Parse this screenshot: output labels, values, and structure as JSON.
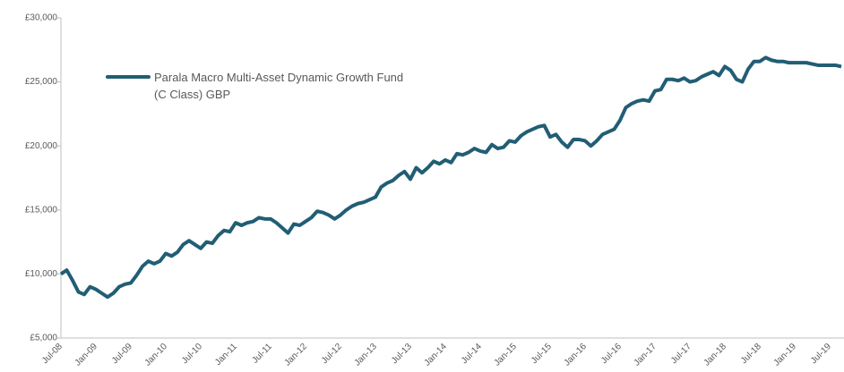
{
  "chart_data": {
    "type": "line",
    "categories": [
      "Jul-08",
      null,
      null,
      null,
      null,
      null,
      "Jan-09",
      null,
      null,
      null,
      null,
      null,
      "Jul-09",
      null,
      null,
      null,
      null,
      null,
      "Jan-10",
      null,
      null,
      null,
      null,
      null,
      "Jul-10",
      null,
      null,
      null,
      null,
      null,
      "Jan-11",
      null,
      null,
      null,
      null,
      null,
      "Jul-11",
      null,
      null,
      null,
      null,
      null,
      "Jan-12",
      null,
      null,
      null,
      null,
      null,
      "Jul-12",
      null,
      null,
      null,
      null,
      null,
      "Jan-13",
      null,
      null,
      null,
      null,
      null,
      "Jul-13",
      null,
      null,
      null,
      null,
      null,
      "Jan-14",
      null,
      null,
      null,
      null,
      null,
      "Jul-14",
      null,
      null,
      null,
      null,
      null,
      "Jan-15",
      null,
      null,
      null,
      null,
      null,
      "Jul-15",
      null,
      null,
      null,
      null,
      null,
      "Jan-16",
      null,
      null,
      null,
      null,
      null,
      "Jul-16",
      null,
      null,
      null,
      null,
      null,
      "Jan-17",
      null,
      null,
      null,
      null,
      null,
      "Jul-17",
      null,
      null,
      null,
      null,
      null,
      "Jan-18",
      null,
      null,
      null,
      null,
      null,
      "Jul-18",
      null,
      null,
      null,
      null,
      null,
      "Jan-19",
      null,
      null,
      null,
      null,
      null,
      "Jul-19",
      null,
      null
    ],
    "series": [
      {
        "name": "Parala Macro Multi-Asset Dynamic Growth Fund (C Class) GBP",
        "color": "#215e75",
        "values": [
          10000,
          10300,
          9500,
          8600,
          8400,
          9000,
          8800,
          8500,
          8200,
          8500,
          9000,
          9200,
          9300,
          9900,
          10600,
          11000,
          10800,
          11000,
          11600,
          11400,
          11700,
          12300,
          12600,
          12300,
          12000,
          12500,
          12400,
          13000,
          13400,
          13300,
          14000,
          13800,
          14000,
          14100,
          14400,
          14300,
          14300,
          14000,
          13600,
          13200,
          13900,
          13800,
          14100,
          14400,
          14900,
          14800,
          14600,
          14300,
          14600,
          15000,
          15300,
          15500,
          15600,
          15800,
          16000,
          16800,
          17100,
          17300,
          17700,
          18000,
          17400,
          18300,
          17900,
          18300,
          18800,
          18600,
          18900,
          18700,
          19400,
          19300,
          19500,
          19800,
          19600,
          19500,
          20100,
          19800,
          19900,
          20400,
          20300,
          20800,
          21100,
          21300,
          21500,
          21600,
          20700,
          20900,
          20300,
          19900,
          20500,
          20500,
          20400,
          20000,
          20400,
          20900,
          21100,
          21300,
          22000,
          23000,
          23300,
          23500,
          23600,
          23500,
          24300,
          24400,
          25200,
          25200,
          25100,
          25300,
          25000,
          25100,
          25400,
          25600,
          25800,
          25500,
          26200,
          25900,
          25200,
          25000,
          26000,
          26600,
          26600,
          26900,
          26700,
          26600,
          26600,
          26500,
          26500,
          26500,
          26500,
          26400,
          26300,
          26300,
          26300,
          26300,
          26200
        ]
      }
    ],
    "ylim": [
      5000,
      30000
    ],
    "yticks": [
      {
        "value": 5000,
        "label": "£5,000"
      },
      {
        "value": 10000,
        "label": "£10,000"
      },
      {
        "value": 15000,
        "label": "£15,000"
      },
      {
        "value": 20000,
        "label": "£20,000"
      },
      {
        "value": 25000,
        "label": "£25,000"
      },
      {
        "value": 30000,
        "label": "£30,000"
      }
    ],
    "grid": false,
    "legend": "top-left"
  }
}
